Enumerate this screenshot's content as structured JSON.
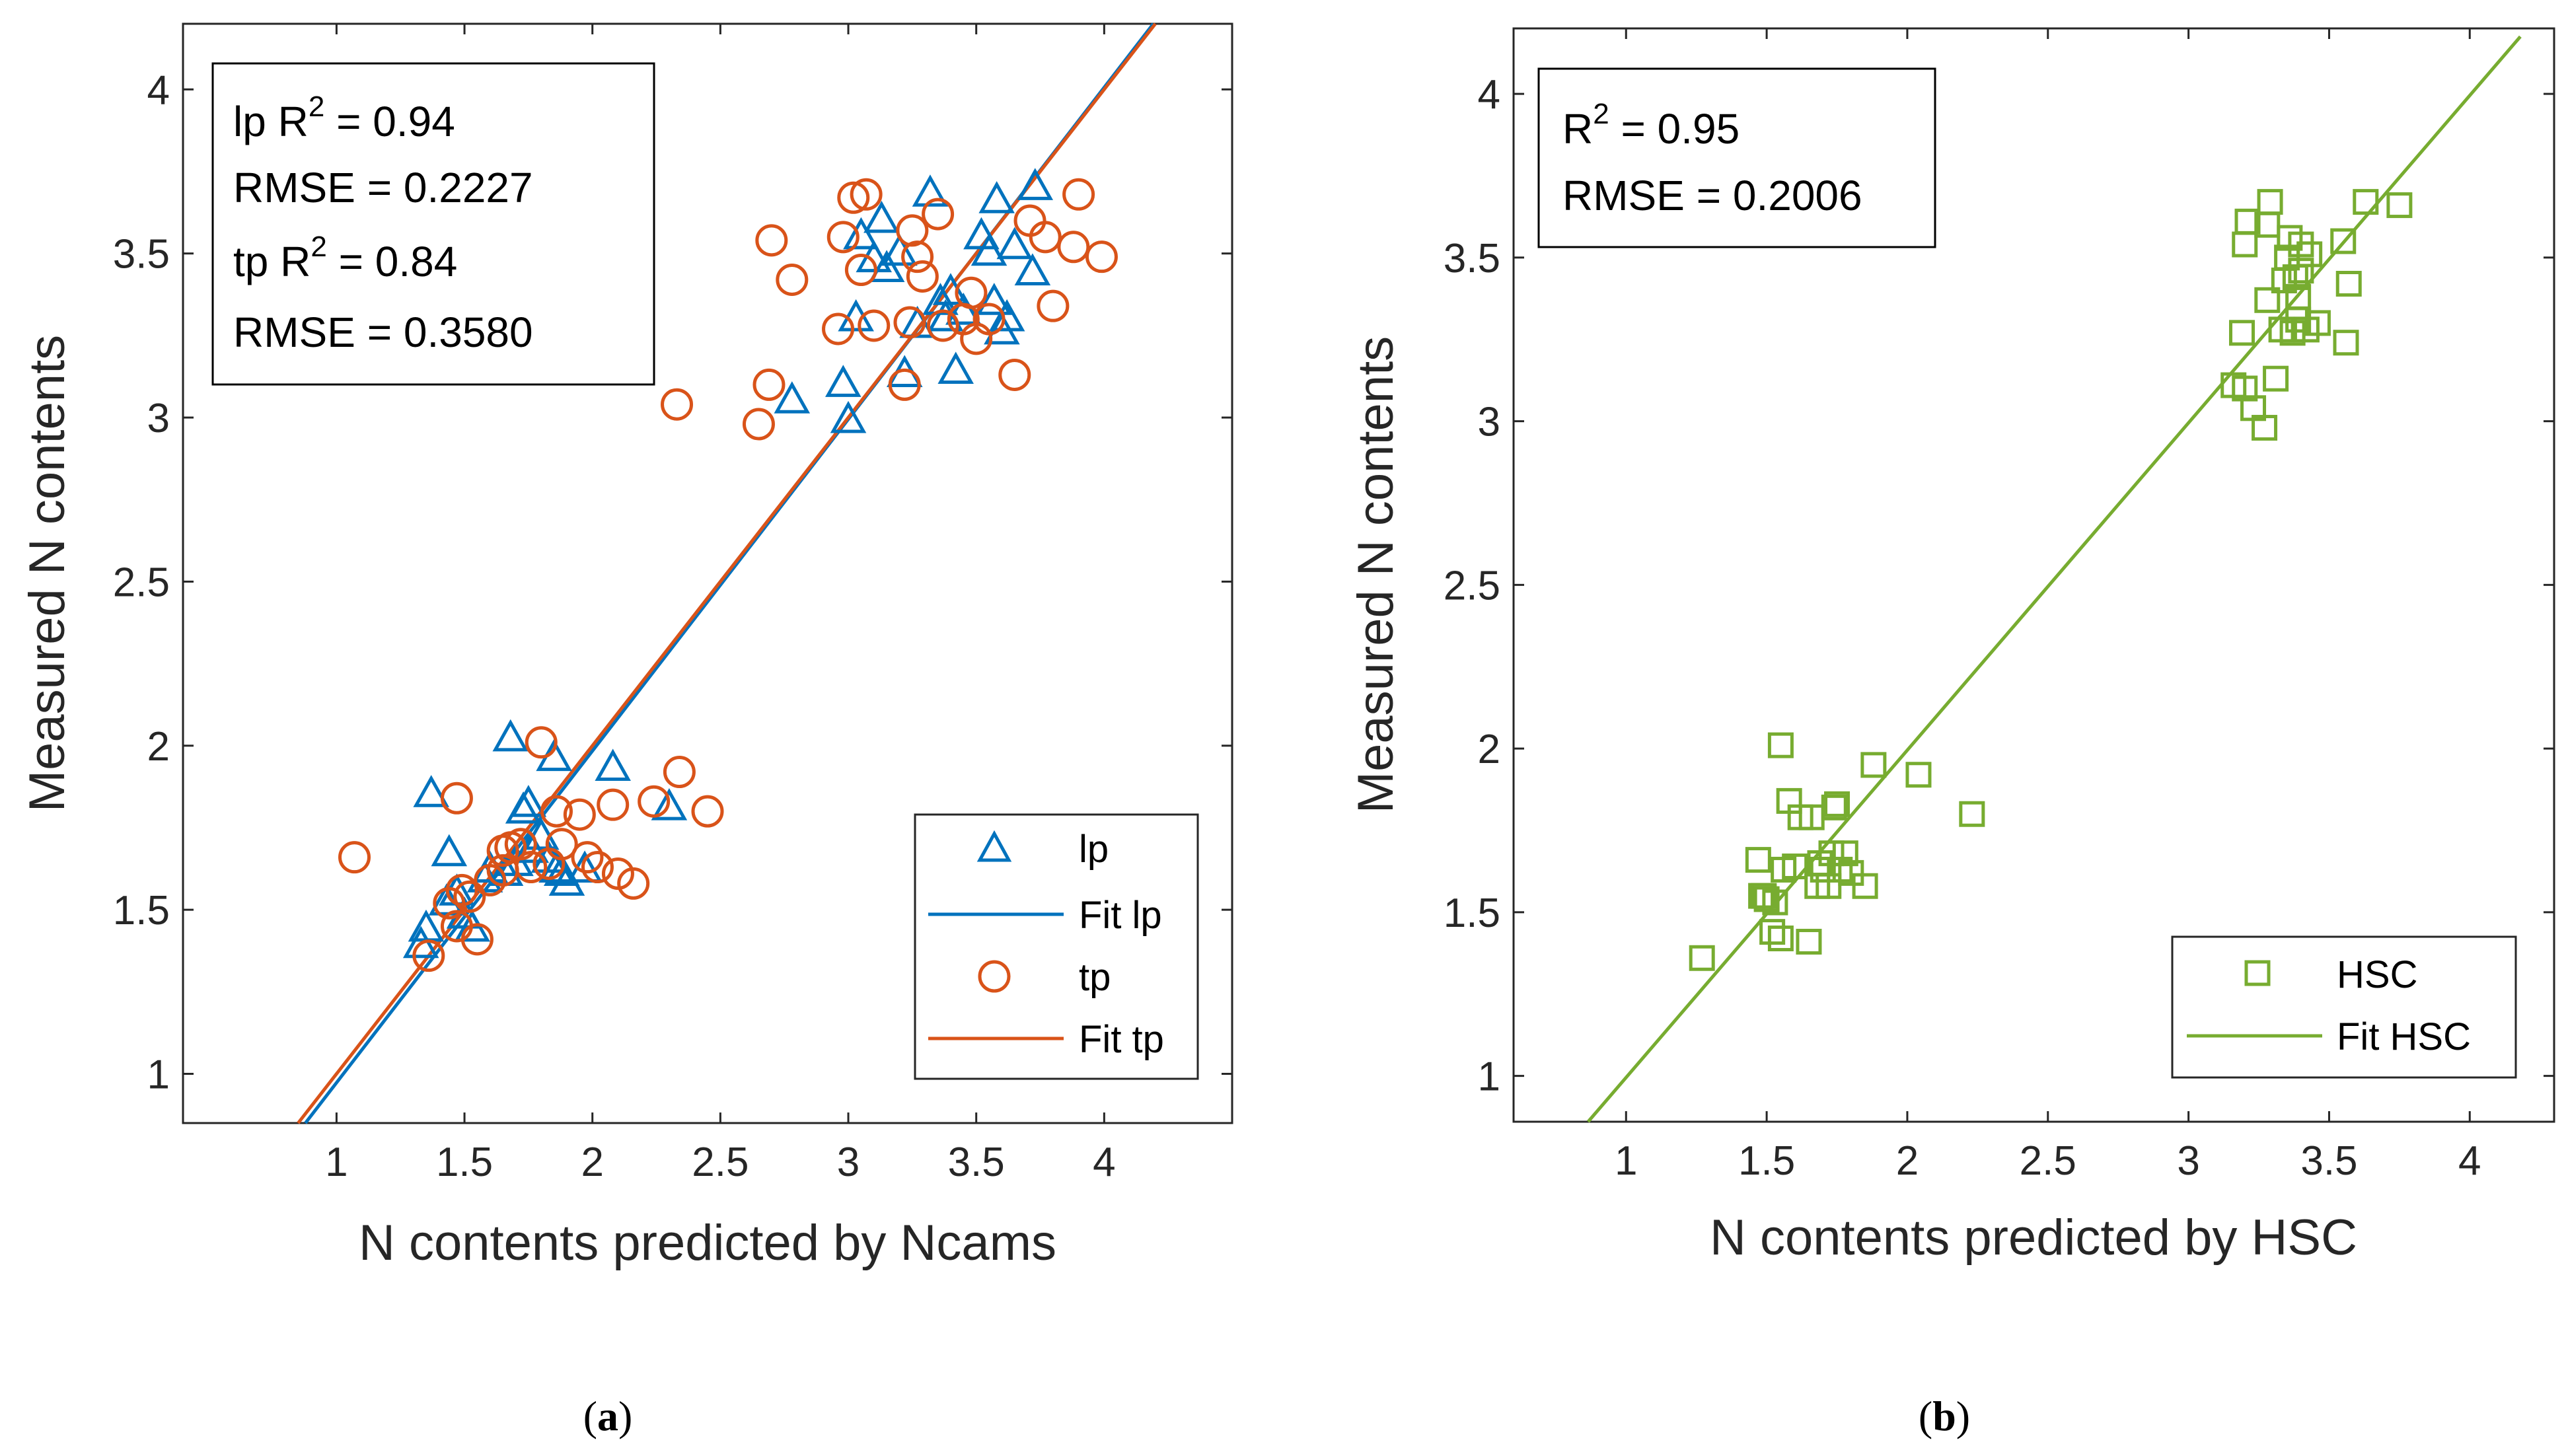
{
  "panel_captions": {
    "a": {
      "open": "(",
      "letter": "a",
      "close": ")"
    },
    "b": {
      "open": "(",
      "letter": "b",
      "close": ")"
    }
  },
  "chart_data": [
    {
      "id": "a",
      "type": "scatter",
      "xlabel": "N contents predicted by Ncams",
      "ylabel": "Measured N contents",
      "xlim": [
        0.4,
        4.5
      ],
      "ylim": [
        0.85,
        4.2
      ],
      "xticks": [
        1,
        1.5,
        2,
        2.5,
        3,
        3.5,
        4
      ],
      "yticks": [
        1,
        1.5,
        2,
        2.5,
        3,
        3.5,
        4
      ],
      "xtick_labels": [
        "1",
        "1.5",
        "2",
        "2.5",
        "3",
        "3.5",
        "4"
      ],
      "ytick_labels": [
        "1",
        "1.5",
        "2",
        "2.5",
        "3",
        "3.5",
        "4"
      ],
      "annotation": [
        {
          "prefix": "lp R",
          "sup": "2",
          "suffix": " = 0.94"
        },
        {
          "prefix": "RMSE = 0.2227",
          "sup": "",
          "suffix": ""
        },
        {
          "prefix": "tp R",
          "sup": "2",
          "suffix": " = 0.84"
        },
        {
          "prefix": "RMSE = 0.3580",
          "sup": "",
          "suffix": ""
        }
      ],
      "legend_position": "bottom-right",
      "legend": [
        {
          "label": "lp",
          "kind": "marker",
          "marker": "triangle",
          "color": "#0072bd"
        },
        {
          "label": "Fit lp",
          "kind": "line",
          "color": "#0072bd"
        },
        {
          "label": "tp",
          "kind": "marker",
          "marker": "circle",
          "color": "#d95319"
        },
        {
          "label": "Fit tp",
          "kind": "line",
          "color": "#d95319"
        }
      ],
      "fits": [
        {
          "name": "Fit lp",
          "color": "#0072bd",
          "slope": 1.011,
          "intercept": -0.038,
          "x_range": [
            0.83,
            4.22
          ]
        },
        {
          "name": "Fit tp",
          "color": "#d95319",
          "slope": 1.0,
          "intercept": 0.0,
          "x_range": [
            0.82,
            4.2
          ]
        }
      ],
      "series": [
        {
          "name": "lp",
          "marker": "triangle",
          "color": "#0072bd",
          "points": [
            [
              1.33,
              1.39
            ],
            [
              1.35,
              1.44
            ],
            [
              1.37,
              1.85
            ],
            [
              1.43,
              1.52
            ],
            [
              1.44,
              1.67
            ],
            [
              1.47,
              1.55
            ],
            [
              1.5,
              1.48
            ],
            [
              1.53,
              1.44
            ],
            [
              1.58,
              1.59
            ],
            [
              1.6,
              1.62
            ],
            [
              1.66,
              1.61
            ],
            [
              1.68,
              2.02
            ],
            [
              1.7,
              1.64
            ],
            [
              1.73,
              1.8
            ],
            [
              1.75,
              1.82
            ],
            [
              1.76,
              1.68
            ],
            [
              1.8,
              1.72
            ],
            [
              1.83,
              1.65
            ],
            [
              1.85,
              1.96
            ],
            [
              1.86,
              1.62
            ],
            [
              1.88,
              1.61
            ],
            [
              1.9,
              1.58
            ],
            [
              1.97,
              1.62
            ],
            [
              2.08,
              1.93
            ],
            [
              2.3,
              1.81
            ],
            [
              2.78,
              3.05
            ],
            [
              2.98,
              3.1
            ],
            [
              3.0,
              2.99
            ],
            [
              3.03,
              3.3
            ],
            [
              3.05,
              3.55
            ],
            [
              3.1,
              3.48
            ],
            [
              3.13,
              3.6
            ],
            [
              3.15,
              3.45
            ],
            [
              3.2,
              3.5
            ],
            [
              3.22,
              3.13
            ],
            [
              3.27,
              3.28
            ],
            [
              3.32,
              3.68
            ],
            [
              3.36,
              3.35
            ],
            [
              3.38,
              3.3
            ],
            [
              3.4,
              3.38
            ],
            [
              3.42,
              3.14
            ],
            [
              3.45,
              3.32
            ],
            [
              3.52,
              3.55
            ],
            [
              3.55,
              3.5
            ],
            [
              3.57,
              3.35
            ],
            [
              3.58,
              3.66
            ],
            [
              3.6,
              3.26
            ],
            [
              3.62,
              3.3
            ],
            [
              3.65,
              3.52
            ],
            [
              3.72,
              3.44
            ],
            [
              3.73,
              3.7
            ]
          ]
        },
        {
          "name": "tp",
          "marker": "circle",
          "color": "#d95319",
          "points": [
            [
              1.07,
              1.66
            ],
            [
              1.36,
              1.36
            ],
            [
              1.44,
              1.52
            ],
            [
              1.47,
              1.45
            ],
            [
              1.47,
              1.84
            ],
            [
              1.49,
              1.56
            ],
            [
              1.52,
              1.54
            ],
            [
              1.55,
              1.41
            ],
            [
              1.6,
              1.59
            ],
            [
              1.65,
              1.62
            ],
            [
              1.65,
              1.68
            ],
            [
              1.68,
              1.69
            ],
            [
              1.72,
              1.7
            ],
            [
              1.76,
              1.63
            ],
            [
              1.8,
              2.01
            ],
            [
              1.83,
              1.64
            ],
            [
              1.86,
              1.8
            ],
            [
              1.88,
              1.7
            ],
            [
              1.95,
              1.79
            ],
            [
              1.98,
              1.66
            ],
            [
              2.02,
              1.63
            ],
            [
              2.08,
              1.82
            ],
            [
              2.1,
              1.61
            ],
            [
              2.16,
              1.58
            ],
            [
              2.24,
              1.83
            ],
            [
              2.33,
              3.04
            ],
            [
              2.34,
              1.92
            ],
            [
              2.45,
              1.8
            ],
            [
              2.65,
              2.98
            ],
            [
              2.69,
              3.1
            ],
            [
              2.7,
              3.54
            ],
            [
              2.78,
              3.42
            ],
            [
              2.96,
              3.27
            ],
            [
              2.98,
              3.55
            ],
            [
              3.02,
              3.67
            ],
            [
              3.05,
              3.45
            ],
            [
              3.07,
              3.68
            ],
            [
              3.1,
              3.28
            ],
            [
              3.22,
              3.1
            ],
            [
              3.24,
              3.29
            ],
            [
              3.25,
              3.57
            ],
            [
              3.27,
              3.49
            ],
            [
              3.29,
              3.43
            ],
            [
              3.35,
              3.62
            ],
            [
              3.37,
              3.28
            ],
            [
              3.45,
              3.3
            ],
            [
              3.48,
              3.38
            ],
            [
              3.5,
              3.24
            ],
            [
              3.55,
              3.3
            ],
            [
              3.65,
              3.13
            ],
            [
              3.71,
              3.6
            ],
            [
              3.77,
              3.55
            ],
            [
              3.8,
              3.34
            ],
            [
              3.88,
              3.52
            ],
            [
              3.9,
              3.68
            ],
            [
              3.99,
              3.49
            ]
          ]
        }
      ]
    },
    {
      "id": "b",
      "type": "scatter",
      "xlabel": "N contents predicted by HSC",
      "ylabel": "Measured N contents",
      "xlim": [
        0.6,
        4.3
      ],
      "ylim": [
        0.86,
        4.2
      ],
      "xticks": [
        1,
        1.5,
        2,
        2.5,
        3,
        3.5,
        4
      ],
      "yticks": [
        1,
        1.5,
        2,
        2.5,
        3,
        3.5,
        4
      ],
      "xtick_labels": [
        "1",
        "1.5",
        "2",
        "2.5",
        "3",
        "3.5",
        "4"
      ],
      "ytick_labels": [
        "1",
        "1.5",
        "2",
        "2.5",
        "3",
        "3.5",
        "4"
      ],
      "annotation": [
        {
          "prefix": "R",
          "sup": "2",
          "suffix": " = 0.95"
        },
        {
          "prefix": "RMSE = 0.2006",
          "sup": "",
          "suffix": ""
        }
      ],
      "legend_position": "bottom-right",
      "legend": [
        {
          "label": "HSC",
          "kind": "marker",
          "marker": "square",
          "color": "#77ac30"
        },
        {
          "label": "Fit HSC",
          "kind": "line",
          "color": "#77ac30"
        }
      ],
      "fits": [
        {
          "name": "Fit HSC",
          "color": "#77ac30",
          "slope": 1.0,
          "intercept": -0.005,
          "x_range": [
            0.86,
            4.18
          ]
        }
      ],
      "series": [
        {
          "name": "HSC",
          "marker": "square",
          "color": "#77ac30",
          "points": [
            [
              1.27,
              1.36
            ],
            [
              1.47,
              1.66
            ],
            [
              1.48,
              1.55
            ],
            [
              1.49,
              1.55
            ],
            [
              1.5,
              1.54
            ],
            [
              1.52,
              1.44
            ],
            [
              1.53,
              1.53
            ],
            [
              1.55,
              1.42
            ],
            [
              1.55,
              2.01
            ],
            [
              1.56,
              1.63
            ],
            [
              1.58,
              1.84
            ],
            [
              1.6,
              1.64
            ],
            [
              1.62,
              1.79
            ],
            [
              1.65,
              1.41
            ],
            [
              1.66,
              1.79
            ],
            [
              1.68,
              1.58
            ],
            [
              1.69,
              1.65
            ],
            [
              1.7,
              1.63
            ],
            [
              1.72,
              1.58
            ],
            [
              1.73,
              1.68
            ],
            [
              1.74,
              1.82
            ],
            [
              1.75,
              1.83
            ],
            [
              1.76,
              1.63
            ],
            [
              1.78,
              1.68
            ],
            [
              1.8,
              1.62
            ],
            [
              1.85,
              1.58
            ],
            [
              1.88,
              1.95
            ],
            [
              2.04,
              1.92
            ],
            [
              2.23,
              1.8
            ],
            [
              3.16,
              3.11
            ],
            [
              3.19,
              3.27
            ],
            [
              3.2,
              3.1
            ],
            [
              3.2,
              3.54
            ],
            [
              3.21,
              3.61
            ],
            [
              3.23,
              3.04
            ],
            [
              3.27,
              2.98
            ],
            [
              3.28,
              3.37
            ],
            [
              3.28,
              3.6
            ],
            [
              3.29,
              3.67
            ],
            [
              3.31,
              3.13
            ],
            [
              3.33,
              3.28
            ],
            [
              3.34,
              3.43
            ],
            [
              3.35,
              3.5
            ],
            [
              3.36,
              3.56
            ],
            [
              3.37,
              3.27
            ],
            [
              3.38,
              3.44
            ],
            [
              3.39,
              3.31
            ],
            [
              3.39,
              3.38
            ],
            [
              3.4,
              3.46
            ],
            [
              3.4,
              3.54
            ],
            [
              3.42,
              3.28
            ],
            [
              3.43,
              3.51
            ],
            [
              3.46,
              3.3
            ],
            [
              3.55,
              3.55
            ],
            [
              3.56,
              3.24
            ],
            [
              3.57,
              3.42
            ],
            [
              3.63,
              3.67
            ],
            [
              3.75,
              3.66
            ]
          ]
        }
      ]
    }
  ]
}
